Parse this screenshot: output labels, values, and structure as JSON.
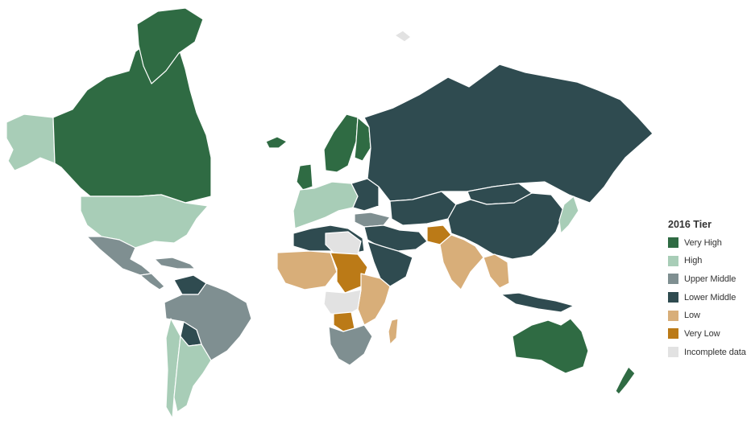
{
  "legend": {
    "title": "2016 Tier",
    "items": [
      {
        "key": "very_high",
        "label": "Very High",
        "color": "#2f6b43"
      },
      {
        "key": "high",
        "label": "High",
        "color": "#a8cdb7"
      },
      {
        "key": "upper_middle",
        "label": "Upper Middle",
        "color": "#7f8f91"
      },
      {
        "key": "lower_middle",
        "label": "Lower Middle",
        "color": "#2f4b50"
      },
      {
        "key": "low",
        "label": "Low",
        "color": "#d8ae79"
      },
      {
        "key": "very_low",
        "label": "Very Low",
        "color": "#bb7a17"
      },
      {
        "key": "incomplete",
        "label": "Incomplete data",
        "color": "#e2e2e2"
      }
    ]
  },
  "regions": [
    {
      "name": "canada",
      "tier": "very_high"
    },
    {
      "name": "greenland",
      "tier": "very_high"
    },
    {
      "name": "alaska",
      "tier": "high"
    },
    {
      "name": "united-states",
      "tier": "high"
    },
    {
      "name": "mexico",
      "tier": "upper_middle"
    },
    {
      "name": "central-america",
      "tier": "upper_middle"
    },
    {
      "name": "caribbean",
      "tier": "upper_middle"
    },
    {
      "name": "venezuela",
      "tier": "lower_middle"
    },
    {
      "name": "brazil",
      "tier": "upper_middle"
    },
    {
      "name": "bolivia",
      "tier": "lower_middle"
    },
    {
      "name": "chile",
      "tier": "high"
    },
    {
      "name": "argentina",
      "tier": "high"
    },
    {
      "name": "iceland",
      "tier": "very_high"
    },
    {
      "name": "scandinavia",
      "tier": "very_high"
    },
    {
      "name": "finland",
      "tier": "very_high"
    },
    {
      "name": "western-europe",
      "tier": "high"
    },
    {
      "name": "eastern-europe",
      "tier": "lower_middle"
    },
    {
      "name": "uk",
      "tier": "very_high"
    },
    {
      "name": "russia",
      "tier": "lower_middle"
    },
    {
      "name": "central-asia",
      "tier": "lower_middle"
    },
    {
      "name": "china",
      "tier": "lower_middle"
    },
    {
      "name": "mongolia",
      "tier": "lower_middle"
    },
    {
      "name": "north-africa",
      "tier": "lower_middle"
    },
    {
      "name": "sahara",
      "tier": "incomplete"
    },
    {
      "name": "west-africa",
      "tier": "low"
    },
    {
      "name": "central-africa",
      "tier": "very_low"
    },
    {
      "name": "east-africa",
      "tier": "low"
    },
    {
      "name": "angola-region",
      "tier": "incomplete"
    },
    {
      "name": "zambia",
      "tier": "very_low"
    },
    {
      "name": "southern-africa",
      "tier": "upper_middle"
    },
    {
      "name": "madagascar",
      "tier": "low"
    },
    {
      "name": "turkey",
      "tier": "upper_middle"
    },
    {
      "name": "middle-east",
      "tier": "lower_middle"
    },
    {
      "name": "arabia",
      "tier": "lower_middle"
    },
    {
      "name": "afghanistan",
      "tier": "very_low"
    },
    {
      "name": "india",
      "tier": "low"
    },
    {
      "name": "southeast-asia",
      "tier": "low"
    },
    {
      "name": "indonesia",
      "tier": "lower_middle"
    },
    {
      "name": "japan",
      "tier": "high"
    },
    {
      "name": "australia",
      "tier": "very_high"
    },
    {
      "name": "new-zealand",
      "tier": "very_high"
    },
    {
      "name": "svalbard",
      "tier": "incomplete"
    }
  ]
}
